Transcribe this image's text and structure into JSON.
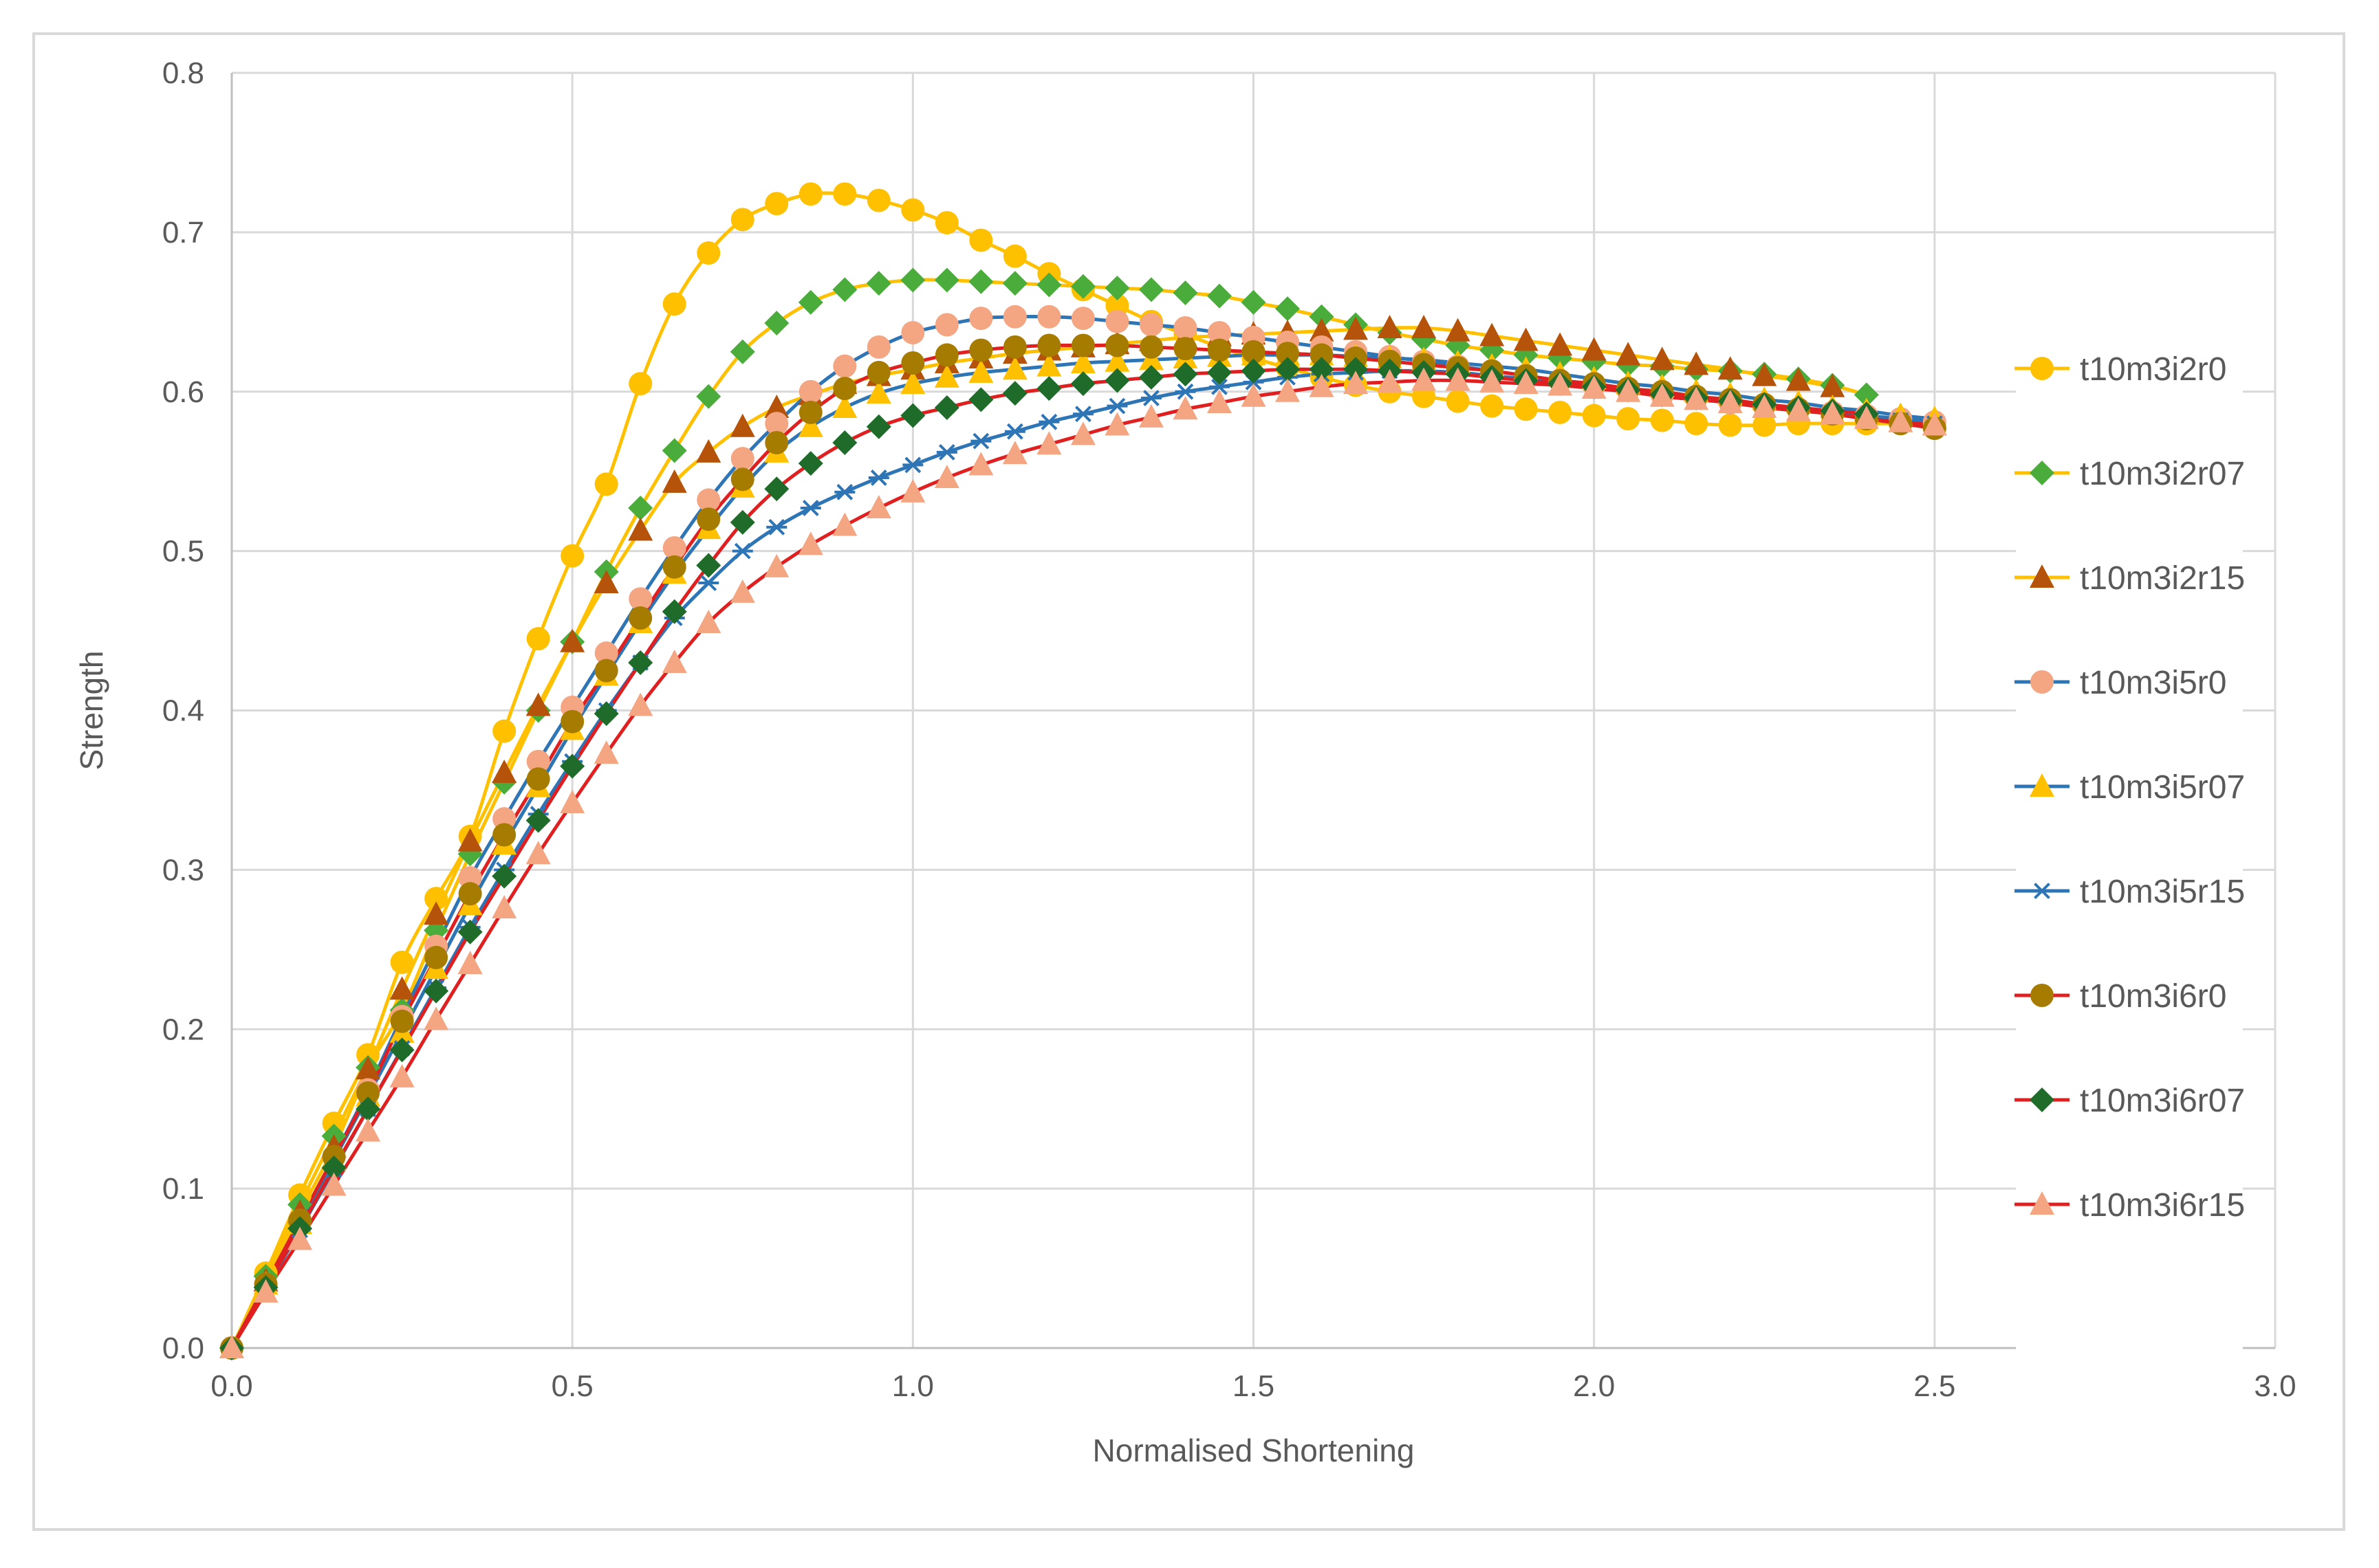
{
  "chart_data": {
    "type": "line",
    "title": "",
    "xlabel": "Normalised Shortening",
    "ylabel": "Strength",
    "xlim": [
      0,
      3
    ],
    "ylim": [
      0,
      0.8
    ],
    "x_ticks": [
      "0.0",
      "0.5",
      "1.0",
      "1.5",
      "2.0",
      "2.5",
      "3.0"
    ],
    "y_ticks": [
      "0.0",
      "0.1",
      "0.2",
      "0.3",
      "0.4",
      "0.5",
      "0.6",
      "0.7",
      "0.8"
    ],
    "grid": true,
    "legend_position": "right",
    "series": [
      {
        "name": "t10m3i2r0",
        "color": "#ffc000",
        "marker": "circle",
        "marker_color": "#ffc000",
        "x": [
          0,
          0.05,
          0.1,
          0.15,
          0.2,
          0.25,
          0.3,
          0.35,
          0.4,
          0.45,
          0.5,
          0.55,
          0.6,
          0.65,
          0.7,
          0.75,
          0.8,
          0.85,
          0.9,
          0.95,
          1.0,
          1.05,
          1.1,
          1.15,
          1.2,
          1.25,
          1.3,
          1.35,
          1.4,
          1.45,
          1.5,
          1.55,
          1.6,
          1.65,
          1.7,
          1.75,
          1.8,
          1.85,
          1.9,
          1.95,
          2.0,
          2.05,
          2.1,
          2.15,
          2.2,
          2.25,
          2.3,
          2.35,
          2.4,
          2.45,
          2.5
        ],
        "y": [
          0,
          0.047,
          0.096,
          0.141,
          0.184,
          0.242,
          0.282,
          0.321,
          0.387,
          0.445,
          0.497,
          0.542,
          0.605,
          0.655,
          0.687,
          0.708,
          0.718,
          0.724,
          0.724,
          0.72,
          0.714,
          0.706,
          0.695,
          0.685,
          0.674,
          0.664,
          0.654,
          0.644,
          0.636,
          0.628,
          0.621,
          0.615,
          0.609,
          0.604,
          0.6,
          0.597,
          0.594,
          0.591,
          0.589,
          0.587,
          0.585,
          0.583,
          0.582,
          0.58,
          0.579,
          0.579,
          0.58,
          0.58,
          0.58,
          0.58,
          0.58
        ]
      },
      {
        "name": "t10m3i2r07",
        "color": "#ffc000",
        "marker": "diamond",
        "marker_color": "#4aac3b",
        "x": [
          0,
          0.05,
          0.1,
          0.15,
          0.2,
          0.25,
          0.3,
          0.35,
          0.4,
          0.45,
          0.5,
          0.55,
          0.6,
          0.65,
          0.7,
          0.75,
          0.8,
          0.85,
          0.9,
          0.95,
          1.0,
          1.05,
          1.1,
          1.15,
          1.2,
          1.25,
          1.3,
          1.35,
          1.4,
          1.45,
          1.5,
          1.55,
          1.6,
          1.65,
          1.7,
          1.75,
          1.8,
          1.85,
          1.9,
          1.95,
          2.0,
          2.05,
          2.1,
          2.15,
          2.2,
          2.25,
          2.3,
          2.35,
          2.4
        ],
        "y": [
          0,
          0.045,
          0.09,
          0.133,
          0.176,
          0.212,
          0.262,
          0.31,
          0.355,
          0.4,
          0.443,
          0.487,
          0.527,
          0.563,
          0.597,
          0.625,
          0.643,
          0.656,
          0.664,
          0.668,
          0.67,
          0.67,
          0.669,
          0.668,
          0.667,
          0.666,
          0.665,
          0.664,
          0.662,
          0.66,
          0.656,
          0.652,
          0.647,
          0.642,
          0.637,
          0.633,
          0.629,
          0.626,
          0.623,
          0.621,
          0.619,
          0.617,
          0.616,
          0.614,
          0.613,
          0.611,
          0.608,
          0.604,
          0.598
        ]
      },
      {
        "name": "t10m3i2r15",
        "color": "#ffc000",
        "marker": "triangle",
        "marker_color": "#b45309",
        "x": [
          0,
          0.05,
          0.1,
          0.15,
          0.2,
          0.25,
          0.3,
          0.35,
          0.4,
          0.45,
          0.5,
          0.55,
          0.6,
          0.65,
          0.7,
          0.75,
          0.8,
          0.85,
          0.9,
          0.95,
          1.0,
          1.05,
          1.1,
          1.15,
          1.2,
          1.25,
          1.3,
          1.35,
          1.4,
          1.45,
          1.5,
          1.55,
          1.6,
          1.65,
          1.7,
          1.75,
          1.8,
          1.85,
          1.9,
          1.95,
          2.0,
          2.05,
          2.1,
          2.15,
          2.2,
          2.25,
          2.3,
          2.35
        ],
        "y": [
          0,
          0.042,
          0.085,
          0.126,
          0.175,
          0.225,
          0.272,
          0.318,
          0.361,
          0.403,
          0.443,
          0.48,
          0.513,
          0.543,
          0.562,
          0.578,
          0.59,
          0.598,
          0.605,
          0.61,
          0.614,
          0.618,
          0.621,
          0.624,
          0.626,
          0.628,
          0.63,
          0.632,
          0.634,
          0.635,
          0.636,
          0.637,
          0.638,
          0.639,
          0.64,
          0.64,
          0.638,
          0.635,
          0.632,
          0.629,
          0.626,
          0.623,
          0.62,
          0.617,
          0.614,
          0.61,
          0.607,
          0.603
        ]
      },
      {
        "name": "t10m3i5r0",
        "color": "#2e75b6",
        "marker": "circle",
        "marker_color": "#f4a582",
        "x": [
          0,
          0.05,
          0.1,
          0.15,
          0.2,
          0.25,
          0.3,
          0.35,
          0.4,
          0.45,
          0.5,
          0.55,
          0.6,
          0.65,
          0.7,
          0.75,
          0.8,
          0.85,
          0.9,
          0.95,
          1.0,
          1.05,
          1.1,
          1.15,
          1.2,
          1.25,
          1.3,
          1.35,
          1.4,
          1.45,
          1.5,
          1.55,
          1.6,
          1.65,
          1.7,
          1.75,
          1.8,
          1.85,
          1.9,
          1.95,
          2.0,
          2.05,
          2.1,
          2.15,
          2.2,
          2.25,
          2.3,
          2.35,
          2.4,
          2.45,
          2.5
        ],
        "y": [
          0,
          0.04,
          0.08,
          0.12,
          0.162,
          0.208,
          0.252,
          0.295,
          0.332,
          0.368,
          0.402,
          0.436,
          0.47,
          0.502,
          0.532,
          0.558,
          0.58,
          0.6,
          0.616,
          0.628,
          0.637,
          0.642,
          0.646,
          0.647,
          0.647,
          0.646,
          0.644,
          0.642,
          0.64,
          0.637,
          0.634,
          0.631,
          0.628,
          0.625,
          0.622,
          0.619,
          0.616,
          0.613,
          0.61,
          0.607,
          0.604,
          0.601,
          0.598,
          0.596,
          0.593,
          0.591,
          0.589,
          0.587,
          0.585,
          0.583,
          0.581
        ]
      },
      {
        "name": "t10m3i5r07",
        "color": "#2e75b6",
        "marker": "triangle",
        "marker_color": "#ffc000",
        "x": [
          0,
          0.05,
          0.1,
          0.15,
          0.2,
          0.25,
          0.3,
          0.35,
          0.4,
          0.45,
          0.5,
          0.55,
          0.6,
          0.65,
          0.7,
          0.75,
          0.8,
          0.85,
          0.9,
          0.95,
          1.0,
          1.05,
          1.1,
          1.15,
          1.2,
          1.25,
          1.3,
          1.35,
          1.4,
          1.45,
          1.5,
          1.55,
          1.6,
          1.65,
          1.7,
          1.75,
          1.8,
          1.85,
          1.9,
          1.95,
          2.0,
          2.05,
          2.1,
          2.15,
          2.2,
          2.25,
          2.3,
          2.35,
          2.4,
          2.45,
          2.5
        ],
        "y": [
          0,
          0.04,
          0.078,
          0.118,
          0.158,
          0.198,
          0.238,
          0.278,
          0.316,
          0.352,
          0.388,
          0.422,
          0.455,
          0.486,
          0.514,
          0.54,
          0.562,
          0.578,
          0.59,
          0.599,
          0.605,
          0.609,
          0.612,
          0.614,
          0.616,
          0.618,
          0.619,
          0.62,
          0.621,
          0.622,
          0.623,
          0.623,
          0.623,
          0.622,
          0.621,
          0.62,
          0.618,
          0.616,
          0.614,
          0.611,
          0.608,
          0.605,
          0.603,
          0.6,
          0.598,
          0.595,
          0.593,
          0.59,
          0.588,
          0.585,
          0.583
        ]
      },
      {
        "name": "t10m3i5r15",
        "color": "#2e75b6",
        "marker": "star",
        "marker_color": "#2e75b6",
        "x": [
          0,
          0.05,
          0.1,
          0.15,
          0.2,
          0.25,
          0.3,
          0.35,
          0.4,
          0.45,
          0.5,
          0.55,
          0.6,
          0.65,
          0.7,
          0.75,
          0.8,
          0.85,
          0.9,
          0.95,
          1.0,
          1.05,
          1.1,
          1.15,
          1.2,
          1.25,
          1.3,
          1.35,
          1.4,
          1.45,
          1.5,
          1.55,
          1.6,
          1.65,
          1.7,
          1.75,
          1.8,
          1.85,
          1.9,
          1.95,
          2.0,
          2.05,
          2.1,
          2.15,
          2.2,
          2.25,
          2.3,
          2.35,
          2.4,
          2.45,
          2.5
        ],
        "y": [
          0,
          0.037,
          0.074,
          0.112,
          0.15,
          0.188,
          0.226,
          0.264,
          0.3,
          0.335,
          0.368,
          0.4,
          0.43,
          0.458,
          0.48,
          0.5,
          0.515,
          0.527,
          0.537,
          0.546,
          0.554,
          0.562,
          0.569,
          0.575,
          0.581,
          0.586,
          0.591,
          0.596,
          0.6,
          0.603,
          0.606,
          0.609,
          0.611,
          0.612,
          0.613,
          0.613,
          0.612,
          0.61,
          0.608,
          0.606,
          0.604,
          0.602,
          0.599,
          0.597,
          0.594,
          0.592,
          0.589,
          0.587,
          0.584,
          0.582,
          0.58
        ]
      },
      {
        "name": "t10m3i6r0",
        "color": "#e02020",
        "marker": "circle",
        "marker_color": "#a67c00",
        "x": [
          0,
          0.05,
          0.1,
          0.15,
          0.2,
          0.25,
          0.3,
          0.35,
          0.4,
          0.45,
          0.5,
          0.55,
          0.6,
          0.65,
          0.7,
          0.75,
          0.8,
          0.85,
          0.9,
          0.95,
          1.0,
          1.05,
          1.1,
          1.15,
          1.2,
          1.25,
          1.3,
          1.35,
          1.4,
          1.45,
          1.5,
          1.55,
          1.6,
          1.65,
          1.7,
          1.75,
          1.8,
          1.85,
          1.9,
          1.95,
          2.0,
          2.05,
          2.1,
          2.15,
          2.2,
          2.25,
          2.3,
          2.35,
          2.4,
          2.45,
          2.5
        ],
        "y": [
          0,
          0.04,
          0.08,
          0.12,
          0.16,
          0.205,
          0.245,
          0.285,
          0.322,
          0.357,
          0.393,
          0.425,
          0.458,
          0.49,
          0.52,
          0.545,
          0.568,
          0.587,
          0.602,
          0.612,
          0.618,
          0.623,
          0.626,
          0.628,
          0.629,
          0.629,
          0.629,
          0.628,
          0.627,
          0.626,
          0.625,
          0.624,
          0.623,
          0.621,
          0.619,
          0.617,
          0.615,
          0.613,
          0.61,
          0.607,
          0.605,
          0.602,
          0.6,
          0.597,
          0.595,
          0.592,
          0.589,
          0.586,
          0.583,
          0.58,
          0.577
        ]
      },
      {
        "name": "t10m3i6r07",
        "color": "#e02020",
        "marker": "diamond",
        "marker_color": "#1f6b2a",
        "x": [
          0,
          0.05,
          0.1,
          0.15,
          0.2,
          0.25,
          0.3,
          0.35,
          0.4,
          0.45,
          0.5,
          0.55,
          0.6,
          0.65,
          0.7,
          0.75,
          0.8,
          0.85,
          0.9,
          0.95,
          1.0,
          1.05,
          1.1,
          1.15,
          1.2,
          1.25,
          1.3,
          1.35,
          1.4,
          1.45,
          1.5,
          1.55,
          1.6,
          1.65,
          1.7,
          1.75,
          1.8,
          1.85,
          1.9,
          1.95,
          2.0,
          2.05,
          2.1,
          2.15,
          2.2,
          2.25,
          2.3,
          2.35,
          2.4
        ],
        "y": [
          0,
          0.038,
          0.075,
          0.113,
          0.15,
          0.187,
          0.224,
          0.261,
          0.296,
          0.331,
          0.365,
          0.398,
          0.43,
          0.462,
          0.491,
          0.518,
          0.539,
          0.555,
          0.568,
          0.578,
          0.585,
          0.59,
          0.595,
          0.599,
          0.602,
          0.605,
          0.607,
          0.609,
          0.611,
          0.612,
          0.613,
          0.614,
          0.614,
          0.614,
          0.613,
          0.612,
          0.611,
          0.609,
          0.607,
          0.605,
          0.603,
          0.601,
          0.598,
          0.596,
          0.594,
          0.592,
          0.59,
          0.588,
          0.586
        ]
      },
      {
        "name": "t10m3i6r15",
        "color": "#e02020",
        "marker": "triangle",
        "marker_color": "#f4a582",
        "x": [
          0,
          0.05,
          0.1,
          0.15,
          0.2,
          0.25,
          0.3,
          0.35,
          0.4,
          0.45,
          0.5,
          0.55,
          0.6,
          0.65,
          0.7,
          0.75,
          0.8,
          0.85,
          0.9,
          0.95,
          1.0,
          1.05,
          1.1,
          1.15,
          1.2,
          1.25,
          1.3,
          1.35,
          1.4,
          1.45,
          1.5,
          1.55,
          1.6,
          1.65,
          1.7,
          1.75,
          1.8,
          1.85,
          1.9,
          1.95,
          2.0,
          2.05,
          2.1,
          2.15,
          2.2,
          2.25,
          2.3,
          2.35,
          2.4,
          2.45,
          2.5
        ],
        "y": [
          0,
          0.035,
          0.068,
          0.102,
          0.136,
          0.17,
          0.206,
          0.241,
          0.276,
          0.31,
          0.342,
          0.373,
          0.403,
          0.43,
          0.455,
          0.474,
          0.49,
          0.504,
          0.516,
          0.527,
          0.537,
          0.546,
          0.554,
          0.561,
          0.567,
          0.573,
          0.579,
          0.584,
          0.589,
          0.593,
          0.597,
          0.6,
          0.603,
          0.605,
          0.606,
          0.607,
          0.607,
          0.606,
          0.605,
          0.604,
          0.602,
          0.6,
          0.597,
          0.595,
          0.593,
          0.59,
          0.588,
          0.586,
          0.583,
          0.581,
          0.579
        ]
      }
    ]
  }
}
